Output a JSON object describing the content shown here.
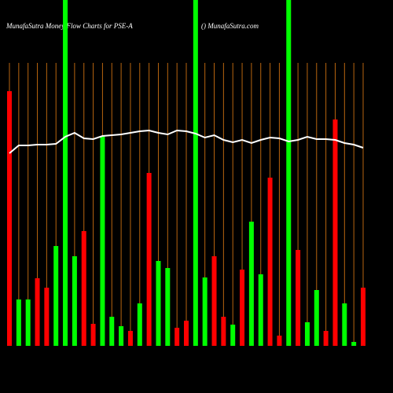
{
  "chart_data": {
    "type": "bar",
    "title": "MunafaSutra  Money Flow  Charts for PSE-A",
    "subtitle": "() MunafaSutra.com",
    "values": [
      324,
      59,
      59,
      86,
      74,
      127,
      440,
      114,
      146,
      28,
      267,
      37,
      25,
      19,
      54,
      220,
      108,
      99,
      23,
      32,
      440,
      87,
      114,
      37,
      27,
      97,
      158,
      91,
      214,
      13,
      440,
      122,
      30,
      71,
      19,
      288,
      54,
      5,
      74
    ],
    "colors": [
      "#ff0000",
      "#00ff00",
      "#00ff00",
      "#ff0000",
      "#ff0000",
      "#00ff00",
      "#00ff00",
      "#00ff00",
      "#ff0000",
      "#ff0000",
      "#00ff00",
      "#00ff00",
      "#00ff00",
      "#ff0000",
      "#00ff00",
      "#ff0000",
      "#00ff00",
      "#00ff00",
      "#ff0000",
      "#ff0000",
      "#00ff00",
      "#00ff00",
      "#ff0000",
      "#ff0000",
      "#00ff00",
      "#ff0000",
      "#00ff00",
      "#00ff00",
      "#ff0000",
      "#ff0000",
      "#00ff00",
      "#ff0000",
      "#00ff00",
      "#00ff00",
      "#ff0000",
      "#ff0000",
      "#00ff00",
      "#00ff00",
      "#ff0000"
    ],
    "line": {
      "color": "#ffffff",
      "values": [
        245,
        255,
        255,
        256,
        256,
        257,
        266,
        271,
        264,
        263,
        267,
        268,
        269,
        271,
        273,
        274,
        271,
        269,
        274,
        273,
        270,
        265,
        268,
        262,
        259,
        262,
        258,
        262,
        265,
        264,
        260,
        262,
        266,
        263,
        263,
        262,
        258,
        256,
        252
      ]
    },
    "ylim": [
      0,
      440
    ],
    "grid_color": "#b8650f",
    "background": "#000000"
  }
}
